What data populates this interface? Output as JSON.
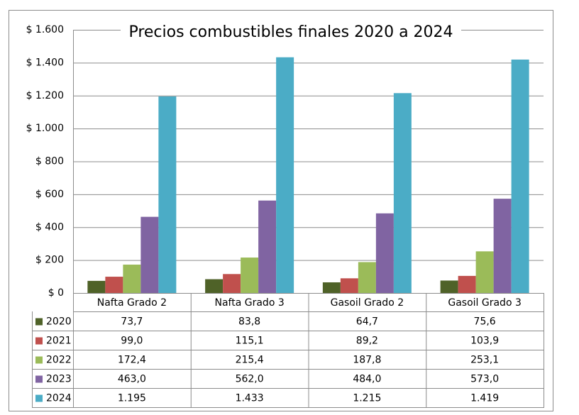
{
  "chart_data": {
    "type": "bar",
    "title": "Precios combustibles finales 2020 a 2024",
    "categories": [
      "Nafta Grado 2",
      "Nafta Grado 3",
      "Gasoil Grado 2",
      "Gasoil Grado 3"
    ],
    "series": [
      {
        "name": "2020",
        "color": "#4f6228",
        "values": [
          73.7,
          83.8,
          64.7,
          75.6
        ],
        "value_labels": [
          "73,7",
          "83,8",
          "64,7",
          "75,6"
        ]
      },
      {
        "name": "2021",
        "color": "#c0504d",
        "values": [
          99.0,
          115.1,
          89.2,
          103.9
        ],
        "value_labels": [
          "99,0",
          "115,1",
          "89,2",
          "103,9"
        ]
      },
      {
        "name": "2022",
        "color": "#9bbb59",
        "values": [
          172.4,
          215.4,
          187.8,
          253.1
        ],
        "value_labels": [
          "172,4",
          "215,4",
          "187,8",
          "253,1"
        ]
      },
      {
        "name": "2023",
        "color": "#8064a2",
        "values": [
          463.0,
          562.0,
          484.0,
          573.0
        ],
        "value_labels": [
          "463,0",
          "562,0",
          "484,0",
          "573,0"
        ]
      },
      {
        "name": "2024",
        "color": "#4bacc6",
        "values": [
          1195,
          1433,
          1215,
          1419
        ],
        "value_labels": [
          "1.195",
          "1.433",
          "1.215",
          "1.419"
        ]
      }
    ],
    "ylim": [
      0,
      1600
    ],
    "yticks": [
      {
        "value": 0,
        "label": "$ 0"
      },
      {
        "value": 200,
        "label": "$ 200"
      },
      {
        "value": 400,
        "label": "$ 400"
      },
      {
        "value": 600,
        "label": "$ 600"
      },
      {
        "value": 800,
        "label": "$ 800"
      },
      {
        "value": 1000,
        "label": "$ 1.000"
      },
      {
        "value": 1200,
        "label": "$ 1.200"
      },
      {
        "value": 1400,
        "label": "$ 1.400"
      },
      {
        "value": 1600,
        "label": "$ 1.600"
      }
    ],
    "grid": true
  }
}
